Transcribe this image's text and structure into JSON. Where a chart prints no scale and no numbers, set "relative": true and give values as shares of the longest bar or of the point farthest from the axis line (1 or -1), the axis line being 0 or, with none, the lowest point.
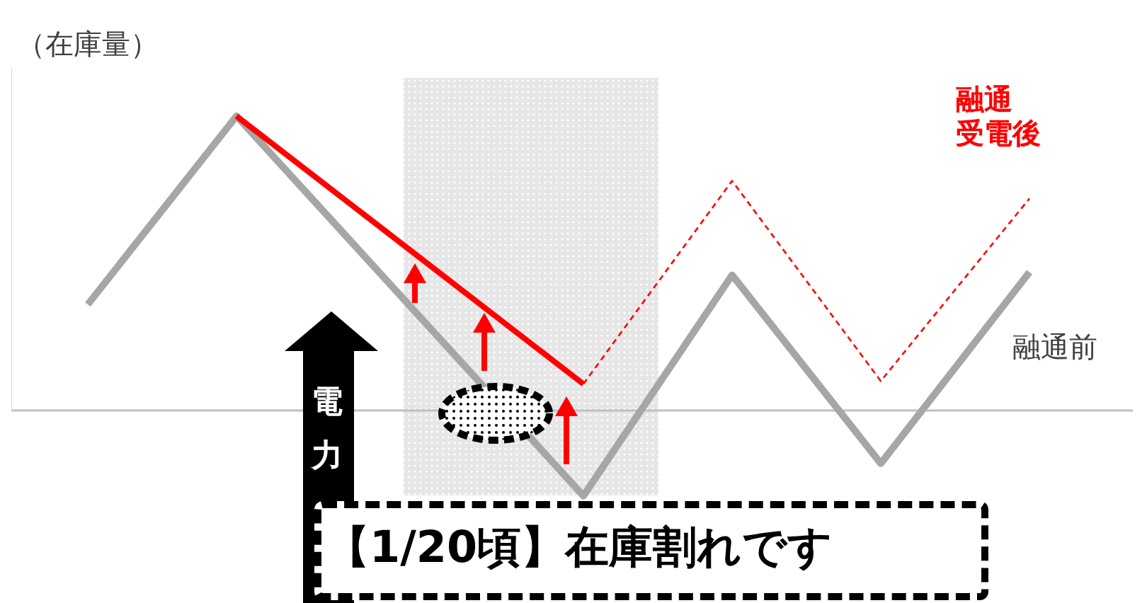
{
  "chart_data": {
    "type": "line",
    "relative": true,
    "ylabel": "（在庫量）",
    "legend": false,
    "grid": false,
    "marker": "none",
    "categories": [
      null,
      null,
      null,
      null,
      null,
      null,
      null,
      null,
      null,
      null,
      null,
      null,
      null,
      null,
      null,
      null,
      null,
      null,
      null,
      null
    ],
    "series": [
      {
        "name": "融通前",
        "color": "#a6a6a6",
        "values": [
          0.36,
          null,
          null,
          1,
          null,
          null,
          null,
          null,
          null,
          null,
          -0.29,
          null,
          null,
          0.46,
          null,
          null,
          -0.18,
          null,
          null,
          0.47
        ]
      },
      {
        "color": "#ff0000",
        "values": [
          null,
          null,
          null,
          1,
          null,
          null,
          null,
          null,
          null,
          null,
          0.09,
          null,
          null,
          null,
          null,
          null,
          null,
          null,
          null,
          null
        ]
      },
      {
        "name": "融通受電後",
        "color": "#ff0000",
        "line_style": "dashed",
        "values": [
          null,
          null,
          null,
          null,
          null,
          null,
          null,
          null,
          null,
          null,
          0.09,
          null,
          null,
          0.78,
          null,
          null,
          0.1,
          null,
          null,
          0.72
        ]
      }
    ],
    "annotations": [
      "電力",
      "【1/20頃】在庫割れです"
    ]
  }
}
